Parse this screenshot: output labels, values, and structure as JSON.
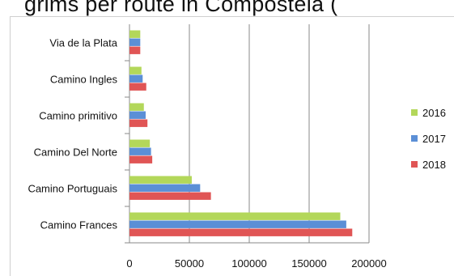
{
  "chart_data": {
    "type": "bar",
    "orientation": "horizontal",
    "title": "Pilgrim arrivals per Camino route (partially cropped)",
    "title_visible_text": "grims per route in Compostela (",
    "categories": [
      "Camino Frances",
      "Camino Portuguais",
      "Camino Del Norte",
      "Camino primitivo",
      "Camino Ingles",
      "Via de la Plata"
    ],
    "series": [
      {
        "name": "2016",
        "color": "#b3d75a",
        "values": [
          176000,
          52000,
          17000,
          12000,
          10000,
          9000
        ]
      },
      {
        "name": "2017",
        "color": "#5b8fd6",
        "values": [
          181000,
          59000,
          18000,
          13500,
          11000,
          9000
        ]
      },
      {
        "name": "2018",
        "color": "#e05555",
        "values": [
          186000,
          68000,
          19000,
          15000,
          14000,
          9000
        ]
      }
    ],
    "xlim": [
      0,
      200000
    ],
    "xticks": [
      "0",
      "50000",
      "100000",
      "150000",
      "200000"
    ],
    "legend": [
      "2016",
      "2017",
      "2018"
    ],
    "legend_position": "right",
    "grid": "vertical",
    "xlabel": "",
    "ylabel": ""
  }
}
